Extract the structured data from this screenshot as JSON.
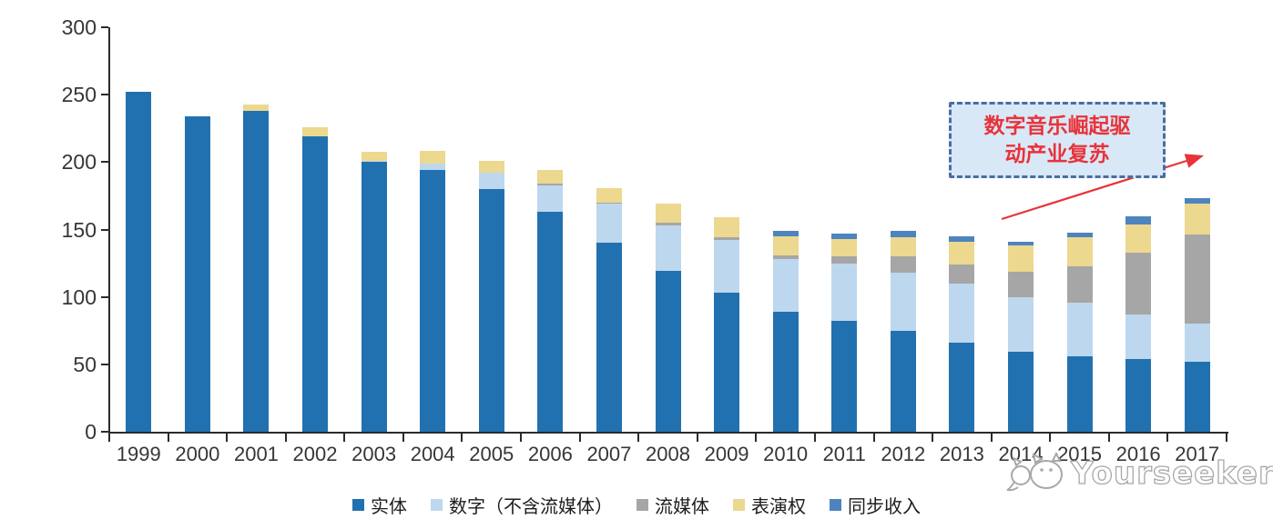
{
  "chart_data": {
    "type": "bar",
    "stacked": true,
    "title": "",
    "xlabel": "",
    "ylabel": "",
    "categories": [
      "1999",
      "2000",
      "2001",
      "2002",
      "2003",
      "2004",
      "2005",
      "2006",
      "2007",
      "2008",
      "2009",
      "2010",
      "2011",
      "2012",
      "2013",
      "2014",
      "2015",
      "2016",
      "2017"
    ],
    "series": [
      {
        "id": "physical",
        "name": "实体",
        "color": "#2171b0",
        "values": [
          252,
          234,
          238,
          219,
          200,
          194,
          180,
          163,
          140,
          119,
          103,
          89,
          82,
          75,
          66,
          59,
          56,
          54,
          52
        ]
      },
      {
        "id": "digital",
        "name": "数字（不含流媒体）",
        "color": "#bdd7ee",
        "values": [
          0,
          0,
          0,
          0,
          1,
          5,
          12,
          20,
          29,
          34,
          39,
          39,
          43,
          43,
          44,
          41,
          40,
          33,
          28
        ]
      },
      {
        "id": "streaming",
        "name": "流媒体",
        "color": "#a6a6a6",
        "values": [
          0,
          0,
          0,
          0,
          0,
          0,
          0,
          1,
          1,
          2,
          2,
          3,
          5,
          12,
          14,
          19,
          27,
          46,
          66
        ]
      },
      {
        "id": "performance",
        "name": "表演权",
        "color": "#ecd88e",
        "values": [
          0,
          0,
          5,
          7,
          7,
          9,
          9,
          10,
          11,
          14,
          15,
          14,
          13,
          14,
          17,
          19,
          21,
          21,
          23
        ]
      },
      {
        "id": "sync",
        "name": "同步收入",
        "color": "#4d84bd",
        "values": [
          0,
          0,
          0,
          0,
          0,
          0,
          0,
          0,
          0,
          0,
          0,
          4,
          4,
          5,
          4,
          3,
          4,
          6,
          4
        ]
      }
    ],
    "ylim": [
      0,
      300
    ],
    "yticks": [
      0,
      50,
      100,
      150,
      200,
      250,
      300
    ],
    "grid": false,
    "legend_position": "bottom"
  },
  "annotation": {
    "lines": [
      "数字音乐崛起驱",
      "动产业复苏"
    ],
    "text_color": "#e8333a",
    "box_border_color": "#4a6e9e",
    "box_fill_color": "#d9e8f7",
    "arrow_color": "#e8333a"
  },
  "watermark": {
    "text": "Yourseeker"
  },
  "colors": {
    "axis": "#2b2b2b",
    "tick_label": "#363636",
    "watermark_outline": "#a8a8a8"
  }
}
